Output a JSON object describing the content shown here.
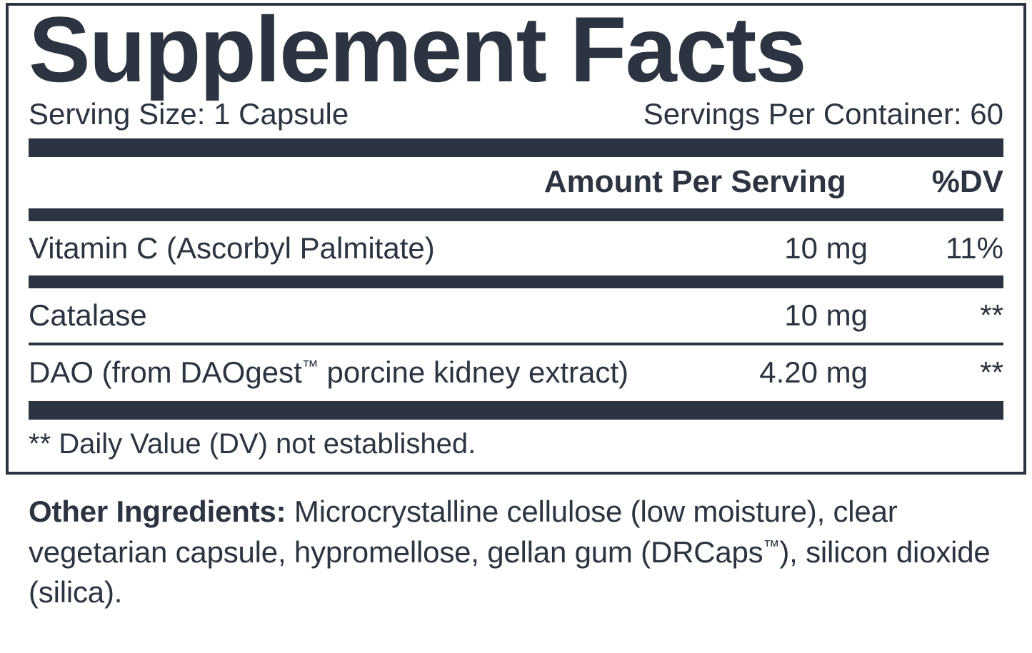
{
  "panel": {
    "title": "Supplement Facts",
    "serving_size_label": "Serving Size: 1 Capsule",
    "servings_per_container_label": "Servings Per Container: 60",
    "header_amount": "Amount Per Serving",
    "header_dv": "%DV",
    "rows": [
      {
        "name": "Vitamin C (Ascorbyl Palmitate)",
        "amount": "10 mg",
        "dv": "11%"
      },
      {
        "name": "Catalase",
        "amount": "10 mg",
        "dv": "**"
      },
      {
        "name_html": "DAO (from DAOgest<sup class='tm'>™</sup> porcine kidney extract)",
        "amount": "4.20 mg",
        "dv": "**"
      }
    ],
    "footnote": "** Daily Value (DV) not established."
  },
  "other": {
    "lead": "Other Ingredients:",
    "text_html": " Microcrystalline cellulose (low moisture), clear vegetarian capsule, hypromellose, gellan gum (DRCaps<sup class='tm'>™</sup>), silicon dioxide (silica)."
  },
  "colors": {
    "ink": "#2b3440",
    "background": "#ffffff"
  }
}
